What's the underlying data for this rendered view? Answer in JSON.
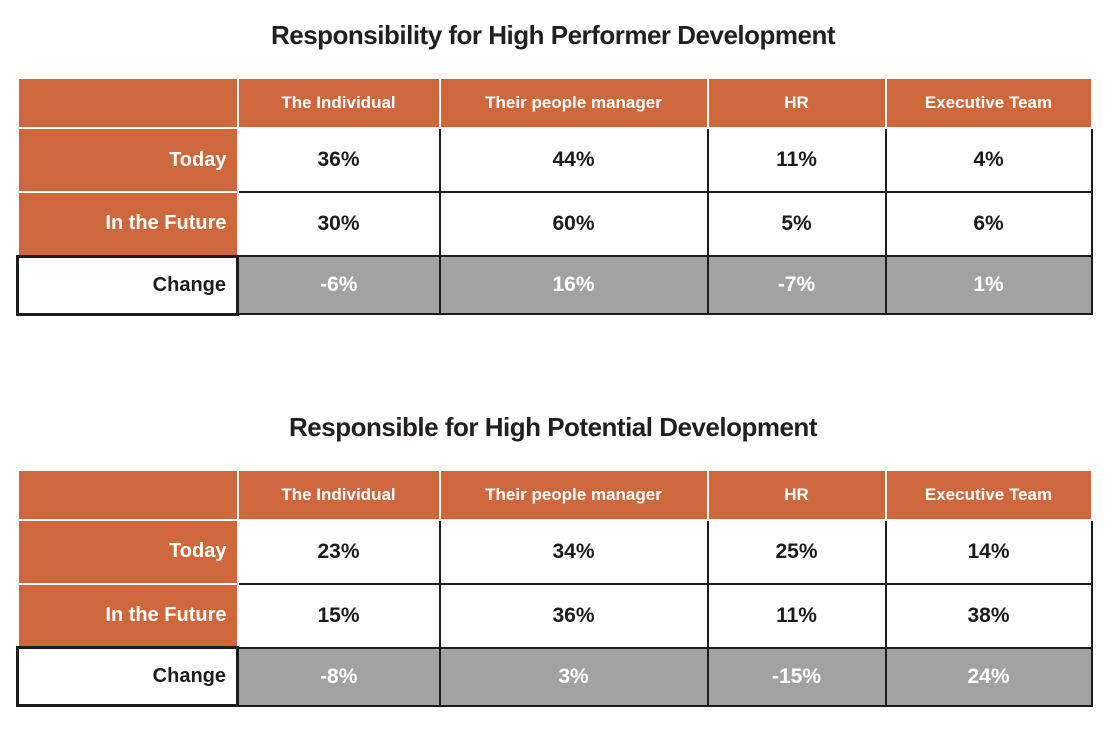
{
  "colors": {
    "accent_orange": "#ce683c",
    "change_gray": "#a2a2a2",
    "grid_black": "#1c1c1c",
    "title_text": "#231f20",
    "header_text": "#ffffff"
  },
  "tables": [
    {
      "title": "Responsibility for High Performer Development",
      "columns": [
        "",
        "The Individual",
        "Their people manager",
        "HR",
        "Executive Team"
      ],
      "rows": [
        {
          "label": "Today",
          "values": [
            "36%",
            "44%",
            "11%",
            "4%"
          ]
        },
        {
          "label": "In the Future",
          "values": [
            "30%",
            "60%",
            "5%",
            "6%"
          ]
        },
        {
          "label": "Change",
          "values": [
            "-6%",
            "16%",
            "-7%",
            "1%"
          ]
        }
      ]
    },
    {
      "title": "Responsible for High Potential Development",
      "columns": [
        "",
        "The Individual",
        "Their people manager",
        "HR",
        "Executive Team"
      ],
      "rows": [
        {
          "label": "Today",
          "values": [
            "23%",
            "34%",
            "25%",
            "14%"
          ]
        },
        {
          "label": "In the Future",
          "values": [
            "15%",
            "36%",
            "11%",
            "38%"
          ]
        },
        {
          "label": "Change",
          "values": [
            "-8%",
            "3%",
            "-15%",
            "24%"
          ]
        }
      ]
    }
  ],
  "chart_data": [
    {
      "type": "table",
      "title": "Responsibility for High Performer Development",
      "columns": [
        "The Individual",
        "Their people manager",
        "HR",
        "Executive Team"
      ],
      "unit": "%",
      "rows": [
        {
          "label": "Today",
          "values": [
            36,
            44,
            11,
            4
          ]
        },
        {
          "label": "In the Future",
          "values": [
            30,
            60,
            5,
            6
          ]
        },
        {
          "label": "Change",
          "values": [
            -6,
            16,
            -7,
            1
          ]
        }
      ]
    },
    {
      "type": "table",
      "title": "Responsible for High Potential Development",
      "columns": [
        "The Individual",
        "Their people manager",
        "HR",
        "Executive Team"
      ],
      "unit": "%",
      "rows": [
        {
          "label": "Today",
          "values": [
            23,
            34,
            25,
            14
          ]
        },
        {
          "label": "In the Future",
          "values": [
            15,
            36,
            11,
            38
          ]
        },
        {
          "label": "Change",
          "values": [
            -8,
            3,
            -15,
            24
          ]
        }
      ]
    }
  ]
}
